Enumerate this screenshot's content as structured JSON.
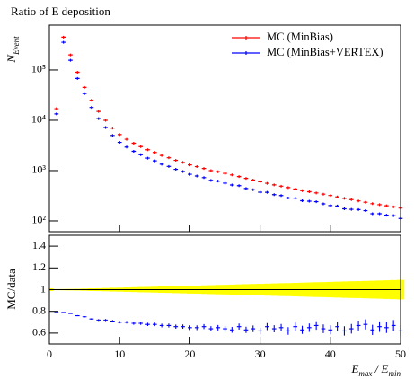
{
  "chart_data": [
    {
      "type": "scatter",
      "title": "Ratio of E deposition",
      "ylabel": [
        "N",
        "Event"
      ],
      "x": [
        1,
        2,
        3,
        4,
        5,
        6,
        7,
        8,
        9,
        10,
        11,
        12,
        13,
        14,
        15,
        16,
        17,
        18,
        19,
        20,
        21,
        22,
        23,
        24,
        25,
        26,
        27,
        28,
        29,
        30,
        31,
        32,
        33,
        34,
        35,
        36,
        37,
        38,
        39,
        40,
        41,
        42,
        43,
        44,
        45,
        46,
        47,
        48,
        49,
        50
      ],
      "series": [
        {
          "name": "MC (MinBias)",
          "color": "#ff0000",
          "values": [
            17000,
            450000,
            200000,
            90000,
            45000,
            25000,
            15000,
            10000,
            7000,
            5200,
            4200,
            3500,
            3000,
            2600,
            2300,
            2000,
            1800,
            1600,
            1450,
            1300,
            1200,
            1100,
            1000,
            950,
            880,
            820,
            760,
            700,
            650,
            600,
            560,
            520,
            490,
            460,
            430,
            400,
            380,
            360,
            340,
            320,
            300,
            280,
            265,
            250,
            235,
            220,
            210,
            200,
            190,
            180
          ]
        },
        {
          "name": "MC (MinBias+VERTEX)",
          "color": "#0000ff",
          "values": [
            13400,
            356000,
            156000,
            68000,
            34000,
            18000,
            10800,
            7200,
            5000,
            3640,
            2940,
            2420,
            2070,
            1770,
            1560,
            1340,
            1210,
            1060,
            960,
            845,
            780,
            725,
            640,
            620,
            563,
            517,
            502,
            441,
            416,
            372,
            370,
            333,
            319,
            285,
            284,
            252,
            247,
            241,
            218,
            202,
            198,
            174,
            170,
            168,
            160,
            139,
            139,
            130,
            127,
            112
          ]
        }
      ],
      "xlim": [
        0,
        50
      ],
      "xticks": [
        0,
        10,
        20,
        30,
        40,
        50
      ],
      "ylim": [
        61,
        780000
      ],
      "log_y": true,
      "yticks": [
        {
          "value": 100,
          "label": "10²"
        },
        {
          "value": 1000,
          "label": "10³"
        },
        {
          "value": 10000,
          "label": "10⁴"
        },
        {
          "value": 100000,
          "label": "10⁵"
        }
      ],
      "legend": "top-right"
    },
    {
      "type": "ratio",
      "ylabel": "MC/data",
      "xlabel": [
        "E",
        "max",
        " / ",
        "E",
        "min"
      ],
      "x": [
        1,
        2,
        3,
        4,
        5,
        6,
        7,
        8,
        9,
        10,
        11,
        12,
        13,
        14,
        15,
        16,
        17,
        18,
        19,
        20,
        21,
        22,
        23,
        24,
        25,
        26,
        27,
        28,
        29,
        30,
        31,
        32,
        33,
        34,
        35,
        36,
        37,
        38,
        39,
        40,
        41,
        42,
        43,
        44,
        45,
        46,
        47,
        48,
        49,
        50
      ],
      "ratio": {
        "color": "#0000ff",
        "values": [
          0.79,
          0.79,
          0.78,
          0.76,
          0.75,
          0.73,
          0.72,
          0.72,
          0.71,
          0.7,
          0.7,
          0.69,
          0.69,
          0.68,
          0.68,
          0.67,
          0.67,
          0.66,
          0.66,
          0.65,
          0.65,
          0.66,
          0.64,
          0.65,
          0.64,
          0.63,
          0.66,
          0.63,
          0.64,
          0.62,
          0.66,
          0.64,
          0.65,
          0.62,
          0.66,
          0.63,
          0.65,
          0.67,
          0.64,
          0.63,
          0.66,
          0.62,
          0.64,
          0.67,
          0.68,
          0.63,
          0.66,
          0.65,
          0.67,
          0.62
        ],
        "errors": [
          0.003,
          0.004,
          0.004,
          0.005,
          0.006,
          0.007,
          0.008,
          0.009,
          0.01,
          0.011,
          0.012,
          0.013,
          0.014,
          0.015,
          0.016,
          0.017,
          0.018,
          0.019,
          0.02,
          0.021,
          0.022,
          0.023,
          0.024,
          0.025,
          0.026,
          0.027,
          0.028,
          0.029,
          0.03,
          0.031,
          0.032,
          0.033,
          0.034,
          0.035,
          0.036,
          0.037,
          0.038,
          0.039,
          0.04,
          0.041,
          0.042,
          0.043,
          0.044,
          0.045,
          0.046,
          0.047,
          0.048,
          0.049,
          0.05,
          0.051
        ]
      },
      "band": {
        "color": "#ffff00",
        "values": [
          0.005,
          0.006,
          0.007,
          0.008,
          0.01,
          0.012,
          0.013,
          0.015,
          0.017,
          0.018,
          0.02,
          0.022,
          0.024,
          0.025,
          0.027,
          0.029,
          0.03,
          0.032,
          0.034,
          0.036,
          0.037,
          0.039,
          0.041,
          0.043,
          0.044,
          0.046,
          0.048,
          0.05,
          0.052,
          0.053,
          0.055,
          0.057,
          0.059,
          0.06,
          0.062,
          0.064,
          0.066,
          0.068,
          0.069,
          0.071,
          0.073,
          0.075,
          0.077,
          0.078,
          0.08,
          0.082,
          0.084,
          0.086,
          0.088,
          0.09
        ]
      },
      "reference": 1,
      "xlim": [
        0,
        50
      ],
      "xticks": [
        0,
        10,
        20,
        30,
        40,
        50
      ],
      "ylim": [
        0.5,
        1.5
      ],
      "yticks": [
        0.6,
        0.8,
        1,
        1.2,
        1.4
      ]
    }
  ]
}
